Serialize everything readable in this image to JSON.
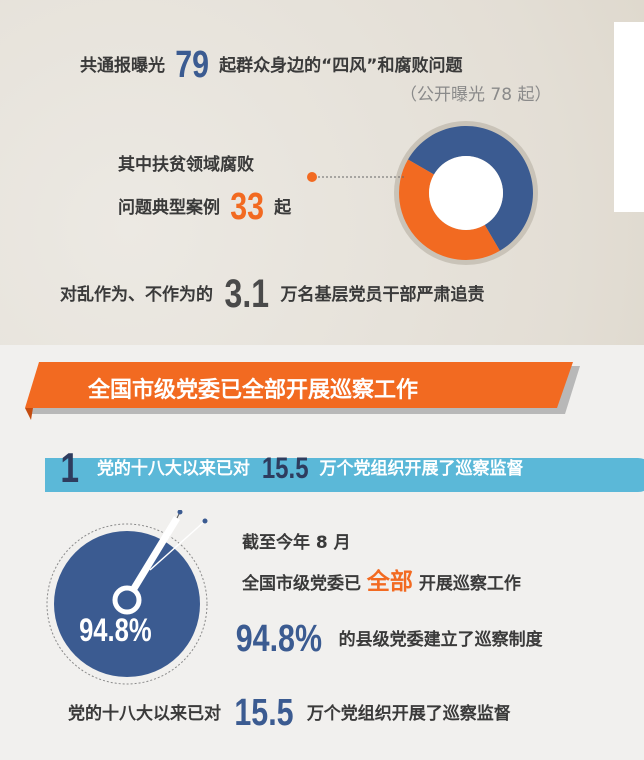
{
  "section1": {
    "line1_pre": "共通报曝光",
    "line1_num": "79",
    "line1_post": "起群众身边的“四风”和腐败问题",
    "line2": "（公开曝光 78 起）",
    "poverty_line1": "其中扶贫领域腐败",
    "poverty_line2_pre": "问题典型案例",
    "poverty_num": "33",
    "poverty_unit": "起",
    "donut": {
      "total": 79,
      "highlight": 33,
      "colors": {
        "main": "#3b5b91",
        "highlight": "#f26a21"
      }
    },
    "accountability_pre": "对乱作为、不作为的",
    "accountability_num": "3.1",
    "accountability_post": "万名基层党员干部严肃追责"
  },
  "section2": {
    "banner": "全国市级党委已全部开展巡察工作",
    "banner_color": "#f26a21",
    "sub_num": "1",
    "sub_pre": "党的十八大以来已对",
    "sub_num2": "15.5",
    "sub_post": "万个党组织开展了巡察监督",
    "sub_color": "#5bb8d8",
    "circle_value": "94.8%",
    "date_line": "截至今年 8 月",
    "all_pre": "全国市级党委已",
    "all_hl": "全部",
    "all_post": "开展巡察工作",
    "pct_num": "94.8%",
    "pct_text": "的县级党委建立了巡察制度",
    "bottom_pre": "党的十八大以来已对",
    "bottom_num": "15.5",
    "bottom_post": "万个党组织开展了巡察监督"
  }
}
